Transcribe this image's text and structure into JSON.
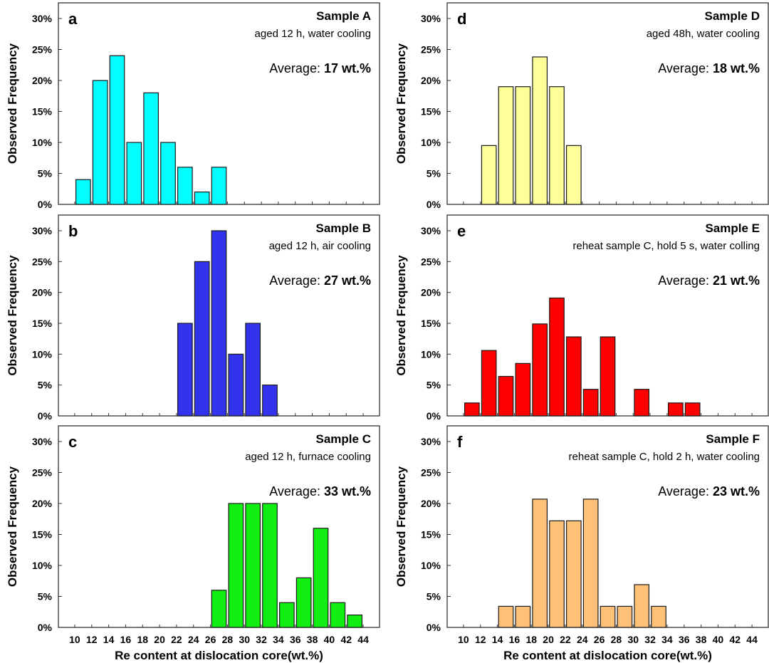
{
  "chart_data": [
    {
      "panel": "a",
      "type": "bar",
      "title": "Sample A",
      "subtitle": "aged 12 h, water cooling",
      "average_label": "Average:",
      "average_value": "17 wt.%",
      "ylabel": "Observed Frequency",
      "xlabel": "",
      "color": "#00ffff",
      "ylim": [
        0,
        30
      ],
      "yticks": [
        "0%",
        "5%",
        "10%",
        "15%",
        "20%",
        "25%",
        "30%"
      ],
      "xticks": [],
      "x": [
        11,
        13,
        15,
        17,
        19,
        21,
        23,
        25,
        27
      ],
      "values": [
        4,
        20,
        24,
        10,
        18,
        10,
        6,
        2,
        6
      ]
    },
    {
      "panel": "b",
      "type": "bar",
      "title": "Sample B",
      "subtitle": "aged 12 h, air cooling",
      "average_label": "Average:",
      "average_value": "27 wt.%",
      "ylabel": "Observed Frequency",
      "xlabel": "",
      "color": "#3333ee",
      "ylim": [
        0,
        30
      ],
      "yticks": [
        "0%",
        "5%",
        "10%",
        "15%",
        "20%",
        "25%",
        "30%"
      ],
      "xticks": [],
      "x": [
        23,
        25,
        27,
        29,
        31,
        33
      ],
      "values": [
        15,
        25,
        30,
        10,
        15,
        5
      ]
    },
    {
      "panel": "c",
      "type": "bar",
      "title": "Sample C",
      "subtitle": "aged 12 h, furnace cooling",
      "average_label": "Average:",
      "average_value": "33 wt.%",
      "ylabel": "Observed Frequency",
      "xlabel": "Re content at dislocation core(wt.%)",
      "color": "#11ee11",
      "ylim": [
        0,
        30
      ],
      "yticks": [
        "0%",
        "5%",
        "10%",
        "15%",
        "20%",
        "25%",
        "30%"
      ],
      "xticks": [
        "10",
        "12",
        "14",
        "16",
        "18",
        "20",
        "22",
        "24",
        "26",
        "28",
        "30",
        "32",
        "34",
        "36",
        "38",
        "40",
        "42",
        "44"
      ],
      "x": [
        27,
        29,
        31,
        33,
        35,
        37,
        39,
        41,
        43
      ],
      "values": [
        6,
        20,
        20,
        20,
        4,
        8,
        16,
        4,
        2
      ]
    },
    {
      "panel": "d",
      "type": "bar",
      "title": "Sample D",
      "subtitle": "aged 48h, water cooling",
      "average_label": "Average:",
      "average_value": "18 wt.%",
      "ylabel": "Observed Frequency",
      "xlabel": "",
      "color": "#ffff99",
      "ylim": [
        0,
        30
      ],
      "yticks": [
        "0%",
        "5%",
        "10%",
        "15%",
        "20%",
        "25%",
        "30%"
      ],
      "xticks": [],
      "x": [
        13,
        15,
        17,
        19,
        21,
        23
      ],
      "values": [
        9.5,
        19,
        19,
        23.8,
        19,
        9.5
      ]
    },
    {
      "panel": "e",
      "type": "bar",
      "title": "Sample E",
      "subtitle": "reheat sample C, hold 5 s, water colling",
      "average_label": "Average:",
      "average_value": "21 wt.%",
      "ylabel": "Observed Frequency",
      "xlabel": "",
      "color": "#ff0000",
      "ylim": [
        0,
        30
      ],
      "yticks": [
        "0%",
        "5%",
        "10%",
        "15%",
        "20%",
        "25%",
        "30%"
      ],
      "xticks": [],
      "x": [
        11,
        13,
        15,
        17,
        19,
        21,
        23,
        25,
        27,
        31,
        35,
        37
      ],
      "values": [
        2.1,
        10.6,
        6.4,
        8.5,
        14.9,
        19.1,
        12.8,
        4.3,
        12.8,
        4.3,
        2.1,
        2.1
      ]
    },
    {
      "panel": "f",
      "type": "bar",
      "title": "Sample F",
      "subtitle": "reheat sample C, hold 2 h, water cooling",
      "average_label": "Average:",
      "average_value": "23 wt.%",
      "ylabel": "Observed Frequency",
      "xlabel": "Re content at dislocation core(wt.%)",
      "color": "#ffc078",
      "ylim": [
        0,
        30
      ],
      "yticks": [
        "0%",
        "5%",
        "10%",
        "15%",
        "20%",
        "25%",
        "30%"
      ],
      "xticks": [
        "10",
        "12",
        "14",
        "16",
        "18",
        "20",
        "22",
        "24",
        "26",
        "28",
        "30",
        "32",
        "34",
        "36",
        "38",
        "40",
        "42",
        "44"
      ],
      "x": [
        15,
        17,
        19,
        21,
        23,
        25,
        27,
        29,
        31,
        33
      ],
      "values": [
        3.4,
        3.4,
        20.7,
        17.2,
        17.2,
        20.7,
        3.4,
        3.4,
        6.9,
        3.4
      ]
    }
  ]
}
